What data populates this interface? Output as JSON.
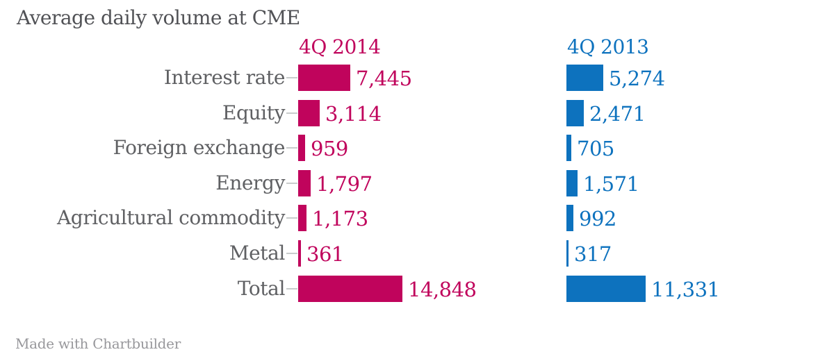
{
  "title": "Average daily volume at CME",
  "footer": "Made with Chartbuilder",
  "colors": {
    "series1": "#C0045C",
    "series2": "#0D72BE",
    "title": "#515256",
    "category_label": "#5F6063",
    "tick": "#C9CCCC",
    "footer": "#97979B",
    "background": "#FFFFFF"
  },
  "chart_data": {
    "type": "bar",
    "orientation": "horizontal",
    "title": "Average daily volume at CME",
    "xlabel": "",
    "ylabel": "",
    "grid": false,
    "value_labels": true,
    "xlim": [
      0,
      14848
    ],
    "legend_position": "column-headers-above-bars",
    "categories": [
      "Interest rate",
      "Equity",
      "Foreign exchange",
      "Energy",
      "Agricultural commodity",
      "Metal",
      "Total"
    ],
    "series": [
      {
        "name": "4Q 2014",
        "color": "#C0045C",
        "values": [
          7445,
          3114,
          959,
          1797,
          1173,
          361,
          14848
        ],
        "labels": [
          "7,445",
          "3,114",
          "959",
          "1,797",
          "1,173",
          "361",
          "14,848"
        ]
      },
      {
        "name": "4Q 2013",
        "color": "#0D72BE",
        "values": [
          5274,
          2471,
          705,
          1571,
          992,
          317,
          11331
        ],
        "labels": [
          "5,274",
          "2,471",
          "705",
          "1,571",
          "992",
          "317",
          "11,331"
        ]
      }
    ]
  }
}
